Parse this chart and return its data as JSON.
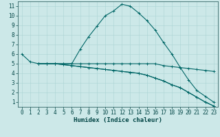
{
  "xlabel": "Humidex (Indice chaleur)",
  "bg_color": "#cce8e8",
  "line_color": "#006666",
  "xlim": [
    -0.5,
    23.5
  ],
  "ylim": [
    0.5,
    11.5
  ],
  "xticks": [
    0,
    1,
    2,
    3,
    4,
    5,
    6,
    7,
    8,
    9,
    10,
    11,
    12,
    13,
    14,
    15,
    16,
    17,
    18,
    19,
    20,
    21,
    22,
    23
  ],
  "yticks": [
    1,
    2,
    3,
    4,
    5,
    6,
    7,
    8,
    9,
    10,
    11
  ],
  "curves": [
    {
      "x": [
        0,
        1,
        2,
        3,
        4,
        5,
        6,
        7,
        8,
        9,
        10,
        11,
        12,
        13,
        14,
        15,
        16,
        17,
        18,
        19,
        20,
        21,
        22,
        23
      ],
      "y": [
        6.0,
        5.2,
        5.0,
        5.0,
        5.0,
        5.0,
        5.0,
        6.5,
        7.8,
        8.9,
        10.0,
        10.5,
        11.2,
        11.0,
        10.3,
        9.5,
        8.5,
        7.2,
        6.0,
        4.6,
        3.3,
        2.2,
        1.6,
        1.0
      ]
    },
    {
      "x": [
        2,
        3,
        4,
        5,
        6,
        7,
        8,
        9,
        10,
        11,
        12,
        13,
        14,
        15,
        16,
        17,
        18,
        19,
        20,
        21,
        22,
        23
      ],
      "y": [
        5.0,
        5.0,
        5.0,
        5.0,
        5.0,
        5.0,
        5.0,
        5.0,
        5.0,
        5.0,
        5.0,
        5.0,
        5.0,
        5.0,
        5.0,
        4.8,
        4.7,
        4.6,
        4.5,
        4.4,
        4.3,
        4.2
      ]
    },
    {
      "x": [
        2,
        3,
        4,
        5,
        6,
        7,
        8,
        9,
        10,
        11,
        12,
        13,
        14,
        15,
        16,
        17,
        18,
        19,
        20,
        21,
        22,
        23
      ],
      "y": [
        5.0,
        5.0,
        5.0,
        4.9,
        4.8,
        4.7,
        4.6,
        4.5,
        4.4,
        4.3,
        4.2,
        4.1,
        4.0,
        3.8,
        3.5,
        3.2,
        2.8,
        2.5,
        2.0,
        1.5,
        1.0,
        0.6
      ]
    },
    {
      "x": [
        2,
        3,
        4,
        5,
        6,
        7,
        8,
        9,
        10,
        11,
        12,
        13,
        14,
        15,
        16,
        17,
        18,
        19,
        20,
        21,
        22,
        23
      ],
      "y": [
        5.0,
        5.0,
        5.0,
        4.9,
        4.8,
        4.7,
        4.6,
        4.5,
        4.4,
        4.3,
        4.2,
        4.1,
        4.0,
        3.8,
        3.5,
        3.2,
        2.8,
        2.5,
        2.0,
        1.5,
        1.0,
        0.6
      ]
    }
  ],
  "grid_color": "#aad4d4",
  "marker": "+",
  "markersize": 3,
  "linewidth": 0.8,
  "tick_fontsize": 5.5,
  "xlabel_fontsize": 6.5
}
